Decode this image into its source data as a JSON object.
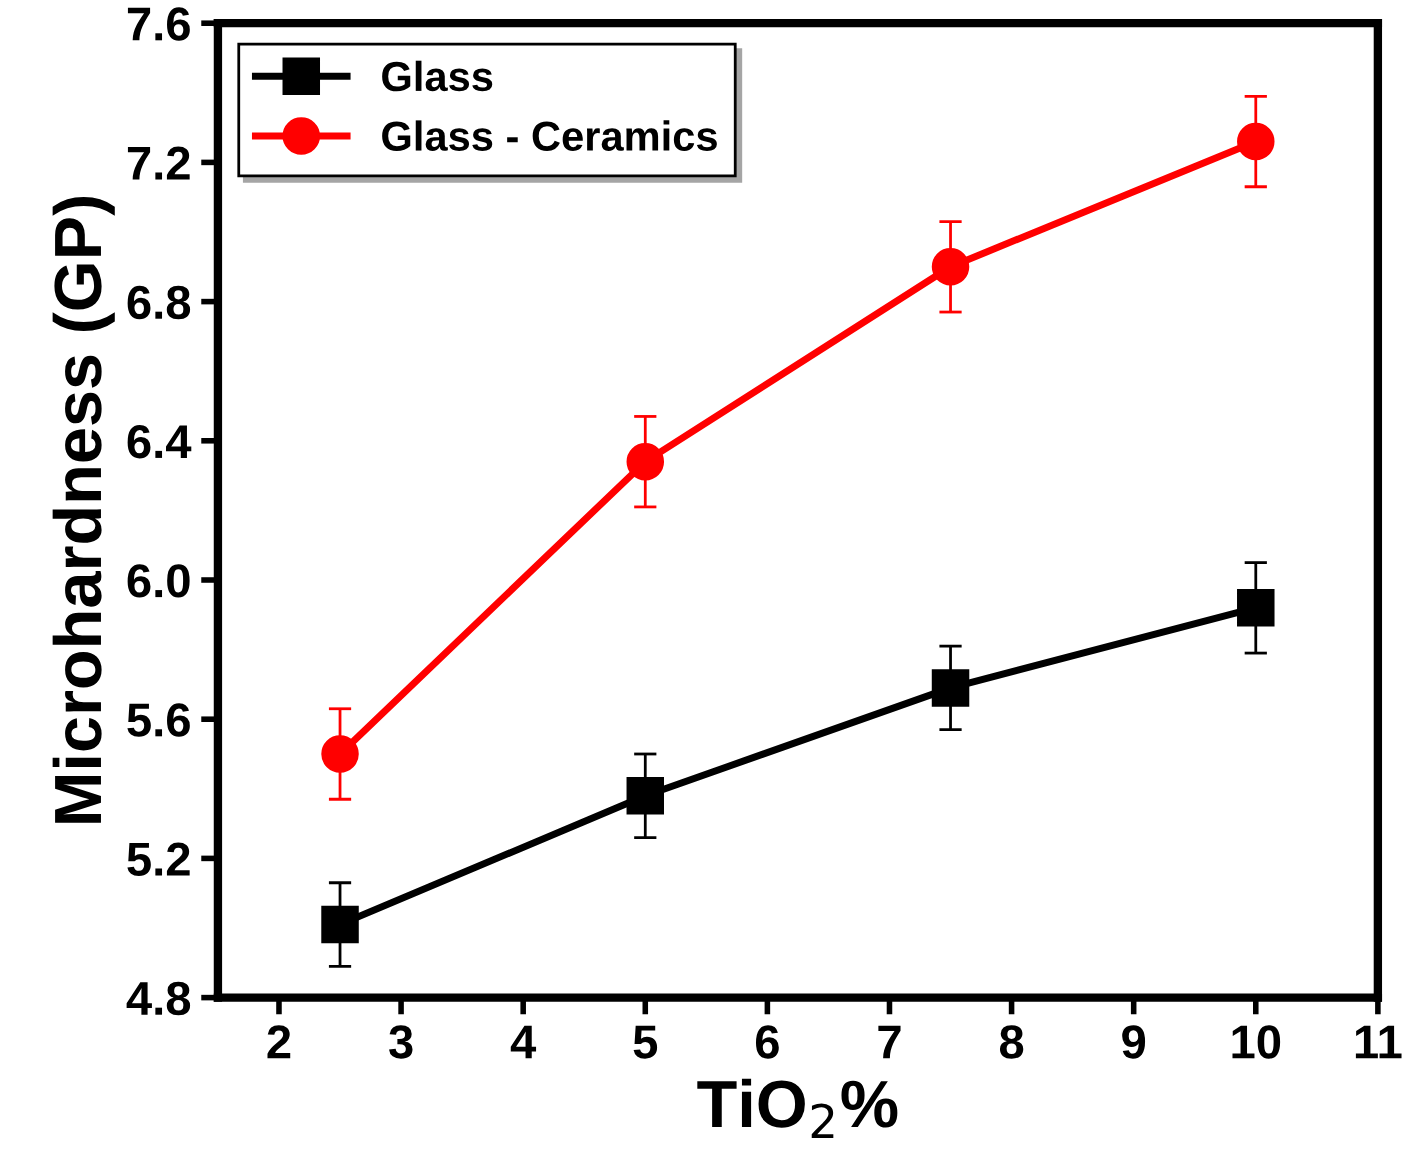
{
  "chart_data": {
    "type": "line",
    "xlabel": "TiO$_{2}$%",
    "ylabel": "Microhardness (GP)",
    "x": [
      2.5,
      5,
      7.5,
      10
    ],
    "series": [
      {
        "name": "Glass",
        "color": "#000000",
        "marker": "square",
        "values": [
          5.01,
          5.38,
          5.69,
          5.92
        ],
        "errors": [
          0.12,
          0.12,
          0.12,
          0.13
        ]
      },
      {
        "name": "Glass - Ceramics",
        "color": "#ff0000",
        "marker": "circle",
        "values": [
          5.5,
          6.34,
          6.9,
          7.26
        ],
        "errors": [
          0.13,
          0.13,
          0.13,
          0.13
        ]
      }
    ],
    "xlim": [
      1.5,
      11
    ],
    "xticks": [
      2,
      3,
      4,
      5,
      6,
      7,
      8,
      9,
      10,
      11
    ],
    "ylim": [
      4.8,
      7.6
    ],
    "yticks": [
      4.8,
      5.2,
      5.6,
      {
        "value": 6,
        "label": "6.0"
      },
      6.4,
      6.8,
      7.2,
      7.6
    ],
    "grid": false,
    "legend": "top left",
    "line_style": "solid"
  }
}
